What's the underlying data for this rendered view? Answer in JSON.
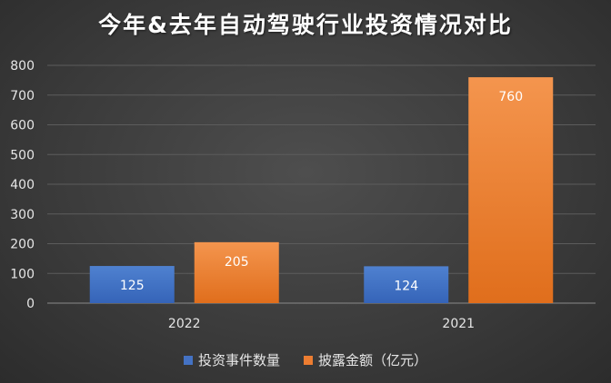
{
  "chart_data": {
    "type": "bar",
    "title": "今年&去年自动驾驶行业投资情况对比",
    "categories": [
      "2022",
      "2021"
    ],
    "series": [
      {
        "name": "投资事件数量",
        "values": [
          125,
          124
        ],
        "color": "#4472c4"
      },
      {
        "name": "披露金额（亿元）",
        "values": [
          205,
          760
        ],
        "color": "#ed7d31"
      }
    ],
    "yticks": [
      "0",
      "100",
      "200",
      "300",
      "400",
      "500",
      "600",
      "700",
      "800"
    ],
    "ylim": [
      0,
      800
    ],
    "grid": true,
    "legend_position": "bottom"
  }
}
